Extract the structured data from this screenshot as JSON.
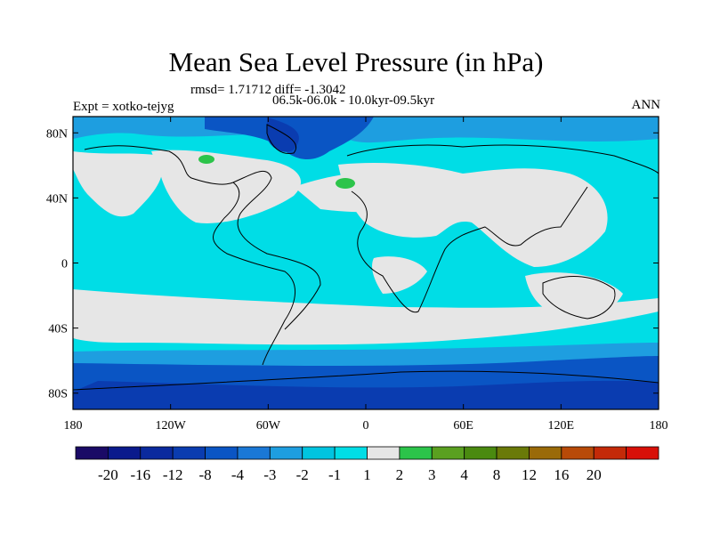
{
  "title": "Mean Sea Level Pressure (in hPa)",
  "stats_line": "rmsd= 1.71712 diff= -1.3042",
  "period_line": "06.5k-06.0k - 10.0kyr-09.5kyr",
  "experiment_label": "Expt = xotko-tejyg",
  "season_label": "ANN",
  "map": {
    "projection": "cylindrical equidistant",
    "lon_range": [
      -180,
      180
    ],
    "lat_range": [
      -90,
      90
    ],
    "lat_ticks": [
      {
        "value": 80,
        "label": "80N"
      },
      {
        "value": 40,
        "label": "40N"
      },
      {
        "value": 0,
        "label": "0"
      },
      {
        "value": -40,
        "label": "40S"
      },
      {
        "value": -80,
        "label": "80S"
      }
    ],
    "lon_ticks": [
      {
        "value": -180,
        "label": "180"
      },
      {
        "value": -120,
        "label": "120W"
      },
      {
        "value": -60,
        "label": "60W"
      },
      {
        "value": 0,
        "label": "0"
      },
      {
        "value": 60,
        "label": "60E"
      },
      {
        "value": 120,
        "label": "120E"
      },
      {
        "value": 180,
        "label": "180"
      }
    ]
  },
  "colorbar": {
    "colors": [
      "#1a0a66",
      "#0a1a8c",
      "#0a2a9e",
      "#0a3cb0",
      "#0a55c4",
      "#1a78d6",
      "#1e9ee0",
      "#00c4e0",
      "#00dde6",
      "#e6e6e6",
      "#2cc44a",
      "#5aa020",
      "#4a8a10",
      "#6a7a08",
      "#9a6a08",
      "#b84a08",
      "#c42a08",
      "#d81008"
    ],
    "labels": [
      "-20",
      "-16",
      "-12",
      "-8",
      "-4",
      "-3",
      "-2",
      "-1",
      "1",
      "2",
      "3",
      "4",
      "8",
      "12",
      "16",
      "20"
    ]
  },
  "colors": {
    "neutral": "#e6e6e6",
    "light_negative": "#00dde6",
    "mid_negative": "#1e9ee0",
    "strong_negative": "#0a55c4",
    "positive": "#2cc44a"
  }
}
